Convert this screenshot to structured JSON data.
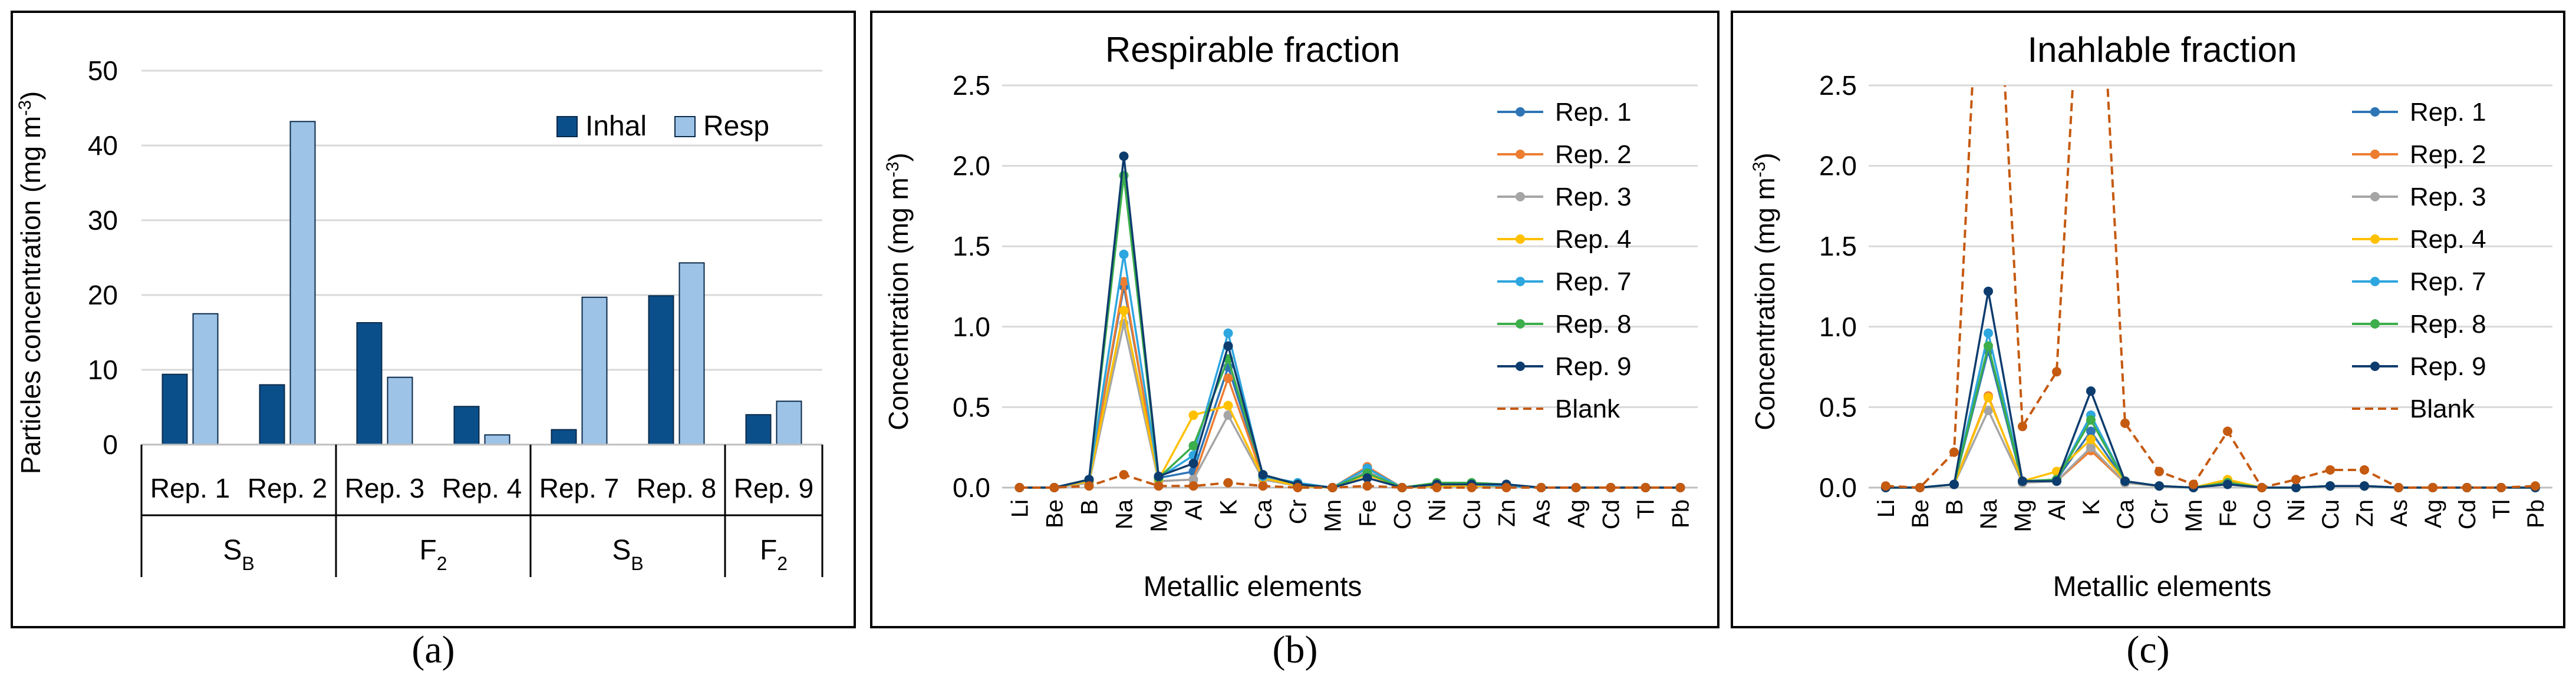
{
  "chart_data": [
    {
      "panel": "a",
      "type": "bar",
      "categories": [
        "Rep. 1",
        "Rep. 2",
        "Rep. 3",
        "Rep. 4",
        "Rep. 7",
        "Rep. 8",
        "Rep. 9"
      ],
      "series": [
        {
          "name": "Inhal",
          "color": "#0b4f8a",
          "values": [
            9.4,
            8.0,
            16.3,
            5.1,
            2.0,
            19.9,
            4.0
          ]
        },
        {
          "name": "Resp",
          "color": "#9dc3e6",
          "values": [
            17.5,
            43.2,
            9.0,
            1.3,
            19.7,
            24.3,
            5.8
          ]
        }
      ],
      "groups": [
        {
          "main": "S",
          "sub": "B",
          "count": 2
        },
        {
          "main": "F",
          "sub": "2",
          "count": 2
        },
        {
          "main": "S",
          "sub": "B",
          "count": 2
        },
        {
          "main": "F",
          "sub": "2",
          "count": 1
        }
      ],
      "ylabel": {
        "main": "Particles concentration (mg m",
        "sup": "-3",
        "end": ")"
      },
      "ylim": [
        0,
        50
      ],
      "yticks": [
        0,
        10,
        20,
        30,
        40,
        50
      ],
      "legend": "top-right",
      "caption": "(a)"
    },
    {
      "panel": "b",
      "type": "line",
      "title": "Respirable  fraction",
      "categories": [
        "Li",
        "Be",
        "B",
        "Na",
        "Mg",
        "Al",
        "K",
        "Ca",
        "Cr",
        "Mn",
        "Fe",
        "Co",
        "Ni",
        "Cu",
        "Zn",
        "As",
        "Ag",
        "Cd",
        "Tl",
        "Pb"
      ],
      "xlabel": "Metallic elements",
      "ylabel": {
        "main": "Concentration (mg m",
        "sup": "-3",
        "end": ")"
      },
      "ylim": [
        0,
        2.5
      ],
      "yticks": [
        "0.0",
        "0.5",
        "1.0",
        "1.5",
        "2.0",
        "2.5"
      ],
      "legend": "top-right",
      "series": [
        {
          "name": "Rep. 1",
          "color": "#2e75b6",
          "dash": false,
          "values": [
            0,
            0,
            0.05,
            1.25,
            0.06,
            0.1,
            0.75,
            0.07,
            0.02,
            0,
            0.1,
            0,
            0.02,
            0.02,
            0.01,
            0,
            0,
            0,
            0,
            0
          ]
        },
        {
          "name": "Rep. 2",
          "color": "#ed7d31",
          "dash": false,
          "values": [
            0,
            0,
            0.04,
            1.28,
            0.04,
            0.05,
            0.68,
            0.06,
            0.01,
            0,
            0.13,
            0,
            0.01,
            0.01,
            0.01,
            0,
            0,
            0,
            0,
            0
          ]
        },
        {
          "name": "Rep. 3",
          "color": "#a5a5a5",
          "dash": false,
          "values": [
            0,
            0,
            0.03,
            1.02,
            0.04,
            0.05,
            0.45,
            0.05,
            0.01,
            0,
            0.1,
            0,
            0.01,
            0.01,
            0.01,
            0,
            0,
            0,
            0,
            0
          ]
        },
        {
          "name": "Rep. 4",
          "color": "#ffc000",
          "dash": false,
          "values": [
            0,
            0,
            0.04,
            1.1,
            0.05,
            0.45,
            0.51,
            0.06,
            0.01,
            0,
            0.08,
            0,
            0.01,
            0.01,
            0.01,
            0,
            0,
            0,
            0,
            0
          ]
        },
        {
          "name": "Rep. 7",
          "color": "#2ea6df",
          "dash": false,
          "values": [
            0,
            0,
            0.05,
            1.45,
            0.06,
            0.2,
            0.96,
            0.07,
            0.03,
            0,
            0.12,
            0,
            0.02,
            0.02,
            0.01,
            0,
            0,
            0,
            0,
            0
          ]
        },
        {
          "name": "Rep. 8",
          "color": "#3cae4b",
          "dash": false,
          "values": [
            0,
            0,
            0.05,
            1.94,
            0.06,
            0.26,
            0.8,
            0.08,
            0.02,
            0,
            0.09,
            0,
            0.03,
            0.03,
            0.02,
            0,
            0,
            0,
            0,
            0
          ]
        },
        {
          "name": "Rep. 9",
          "color": "#0d3c6e",
          "dash": false,
          "values": [
            0,
            0,
            0.05,
            2.06,
            0.07,
            0.15,
            0.88,
            0.08,
            0.02,
            0,
            0.06,
            0,
            0.02,
            0.02,
            0.02,
            0,
            0,
            0,
            0,
            0
          ]
        },
        {
          "name": "Blank",
          "color": "#c55a11",
          "dash": true,
          "values": [
            0,
            0,
            0.01,
            0.08,
            0.01,
            0.01,
            0.03,
            0.01,
            0,
            0,
            0.01,
            0,
            0,
            0,
            0,
            0,
            0,
            0,
            0,
            0
          ]
        }
      ],
      "caption": "(b)"
    },
    {
      "panel": "c",
      "type": "line",
      "title": "Inahlable fraction",
      "categories": [
        "Li",
        "Be",
        "B",
        "Na",
        "Mg",
        "Al",
        "K",
        "Ca",
        "Cr",
        "Mn",
        "Fe",
        "Co",
        "Ni",
        "Cu",
        "Zn",
        "As",
        "Ag",
        "Cd",
        "Tl",
        "Pb"
      ],
      "xlabel": "Metallic elements",
      "ylabel": {
        "main": "Concentration (mg m",
        "sup": "-3",
        "end": ")"
      },
      "ylim": [
        0,
        2.5
      ],
      "yticks": [
        "0.0",
        "0.5",
        "1.0",
        "1.5",
        "2.0",
        "2.5"
      ],
      "legend": "top-right",
      "series": [
        {
          "name": "Rep. 1",
          "color": "#2e75b6",
          "dash": false,
          "values": [
            0,
            0,
            0.02,
            0.85,
            0.03,
            0.05,
            0.35,
            0.04,
            0.01,
            0,
            0.03,
            0,
            0,
            0.01,
            0.01,
            0,
            0,
            0,
            0,
            0
          ]
        },
        {
          "name": "Rep. 2",
          "color": "#ed7d31",
          "dash": false,
          "values": [
            0,
            0,
            0.02,
            0.57,
            0.03,
            0.04,
            0.23,
            0.03,
            0.01,
            0,
            0.04,
            0,
            0,
            0.01,
            0.01,
            0,
            0,
            0,
            0,
            0
          ]
        },
        {
          "name": "Rep. 3",
          "color": "#a5a5a5",
          "dash": false,
          "values": [
            0,
            0,
            0.02,
            0.48,
            0.03,
            0.04,
            0.25,
            0.03,
            0.01,
            0,
            0.03,
            0,
            0,
            0.01,
            0.01,
            0,
            0,
            0,
            0,
            0
          ]
        },
        {
          "name": "Rep. 4",
          "color": "#ffc000",
          "dash": false,
          "values": [
            0,
            0,
            0.02,
            0.56,
            0.04,
            0.1,
            0.3,
            0.04,
            0.01,
            0,
            0.05,
            0,
            0,
            0.01,
            0.01,
            0,
            0,
            0,
            0,
            0
          ]
        },
        {
          "name": "Rep. 7",
          "color": "#2ea6df",
          "dash": false,
          "values": [
            0,
            0,
            0.02,
            0.96,
            0.04,
            0.05,
            0.45,
            0.04,
            0.01,
            0,
            0.03,
            0,
            0,
            0.01,
            0.01,
            0,
            0,
            0,
            0,
            0
          ]
        },
        {
          "name": "Rep. 8",
          "color": "#3cae4b",
          "dash": false,
          "values": [
            0,
            0,
            0.02,
            0.88,
            0.04,
            0.05,
            0.42,
            0.04,
            0.01,
            0,
            0.03,
            0,
            0,
            0.01,
            0.01,
            0,
            0,
            0,
            0,
            0
          ]
        },
        {
          "name": "Rep. 9",
          "color": "#0d3c6e",
          "dash": false,
          "values": [
            0,
            0,
            0.02,
            1.22,
            0.04,
            0.04,
            0.6,
            0.04,
            0.01,
            0,
            0.02,
            0,
            0,
            0.01,
            0.01,
            0,
            0,
            0,
            0,
            0
          ]
        },
        {
          "name": "Blank",
          "color": "#c55a11",
          "dash": true,
          "values": [
            0.01,
            0,
            0.22,
            4.5,
            0.38,
            0.72,
            4.5,
            0.4,
            0.1,
            0.02,
            0.35,
            0,
            0.05,
            0.11,
            0.11,
            0,
            0,
            0,
            0,
            0.01
          ]
        }
      ],
      "caption": "(c)"
    }
  ]
}
